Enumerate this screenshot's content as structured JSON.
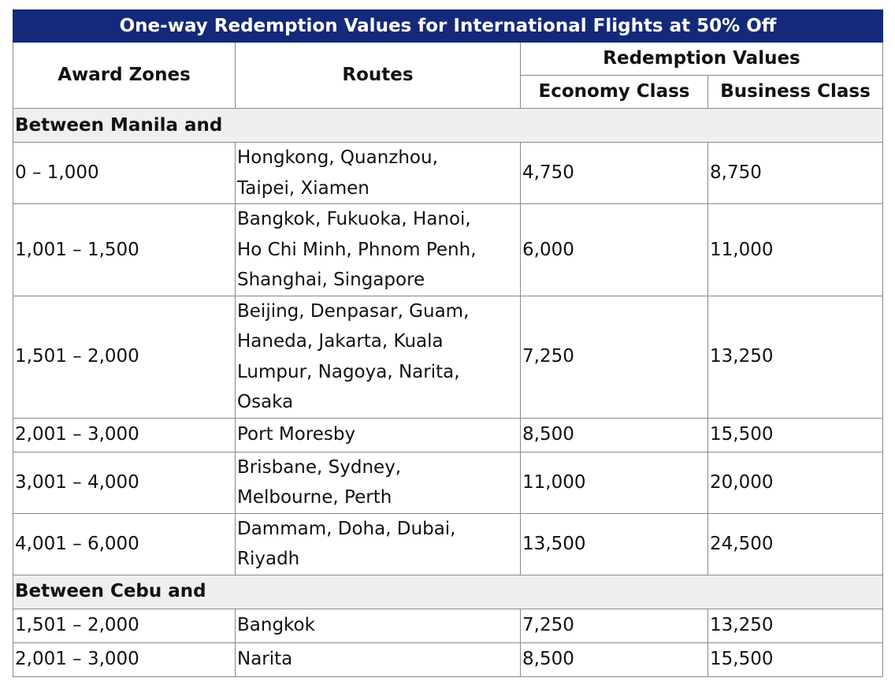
{
  "table": {
    "title": "One-way Redemption Values for International Flights at 50% Off",
    "headers": {
      "award_zones": "Award Zones",
      "routes": "Routes",
      "redemption_values": "Redemption Values",
      "economy_class": "Economy Class",
      "business_class": "Business Class"
    },
    "sections": [
      {
        "label": "Between Manila and",
        "rows": [
          {
            "zone": "0 – 1,000",
            "routes": [
              "Hongkong, Quanzhou,",
              "Taipei, Xiamen"
            ],
            "economy": "4,750",
            "business": "8,750"
          },
          {
            "zone": "1,001 – 1,500",
            "routes": [
              "Bangkok, Fukuoka, Hanoi,",
              "Ho Chi Minh, Phnom Penh,",
              "Shanghai, Singapore"
            ],
            "economy": "6,000",
            "business": "11,000"
          },
          {
            "zone": "1,501 – 2,000",
            "routes": [
              "Beijing, Denpasar, Guam,",
              "Haneda, Jakarta, Kuala",
              "Lumpur, Nagoya, Narita,",
              "Osaka"
            ],
            "economy": "7,250",
            "business": "13,250"
          },
          {
            "zone": "2,001 – 3,000",
            "routes": [
              "Port Moresby"
            ],
            "economy": "8,500",
            "business": "15,500"
          },
          {
            "zone": "3,001 – 4,000",
            "routes": [
              "Brisbane, Sydney,",
              "Melbourne, Perth"
            ],
            "economy": "11,000",
            "business": "20,000"
          },
          {
            "zone": "4,001 – 6,000",
            "routes": [
              "Dammam, Doha, Dubai,",
              "Riyadh"
            ],
            "economy": "13,500",
            "business": "24,500"
          }
        ]
      },
      {
        "label": "Between Cebu and",
        "rows": [
          {
            "zone": "1,501 – 2,000",
            "routes": [
              "Bangkok"
            ],
            "economy": "7,250",
            "business": "13,250"
          },
          {
            "zone": "2,001 – 3,000",
            "routes": [
              "Narita"
            ],
            "economy": "8,500",
            "business": "15,500"
          }
        ]
      }
    ]
  }
}
